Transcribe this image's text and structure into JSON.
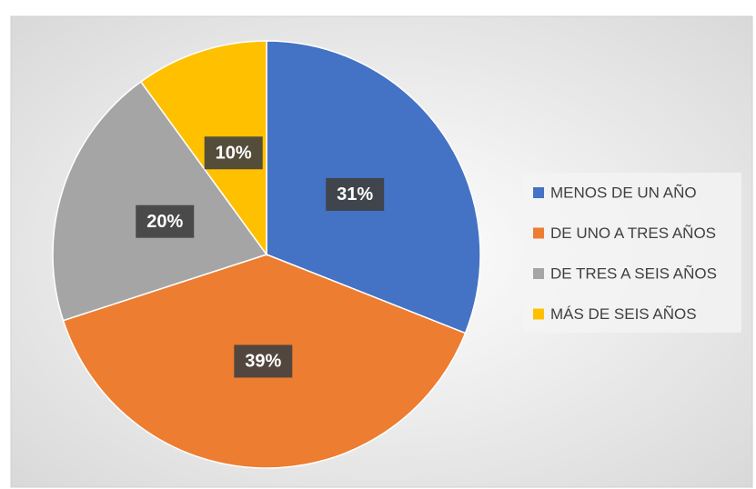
{
  "chart_data": {
    "type": "pie",
    "categories": [
      "MENOS DE UN AÑO",
      "DE UNO A TRES AÑOS",
      "DE TRES A SEIS AÑOS",
      "MÁS DE SEIS AÑOS"
    ],
    "values": [
      31,
      39,
      20,
      10
    ],
    "value_labels": [
      "31%",
      "39%",
      "20%",
      "10%"
    ],
    "colors": [
      "#4472c4",
      "#ed7d31",
      "#a5a5a5",
      "#ffc000"
    ],
    "legend": "right"
  }
}
